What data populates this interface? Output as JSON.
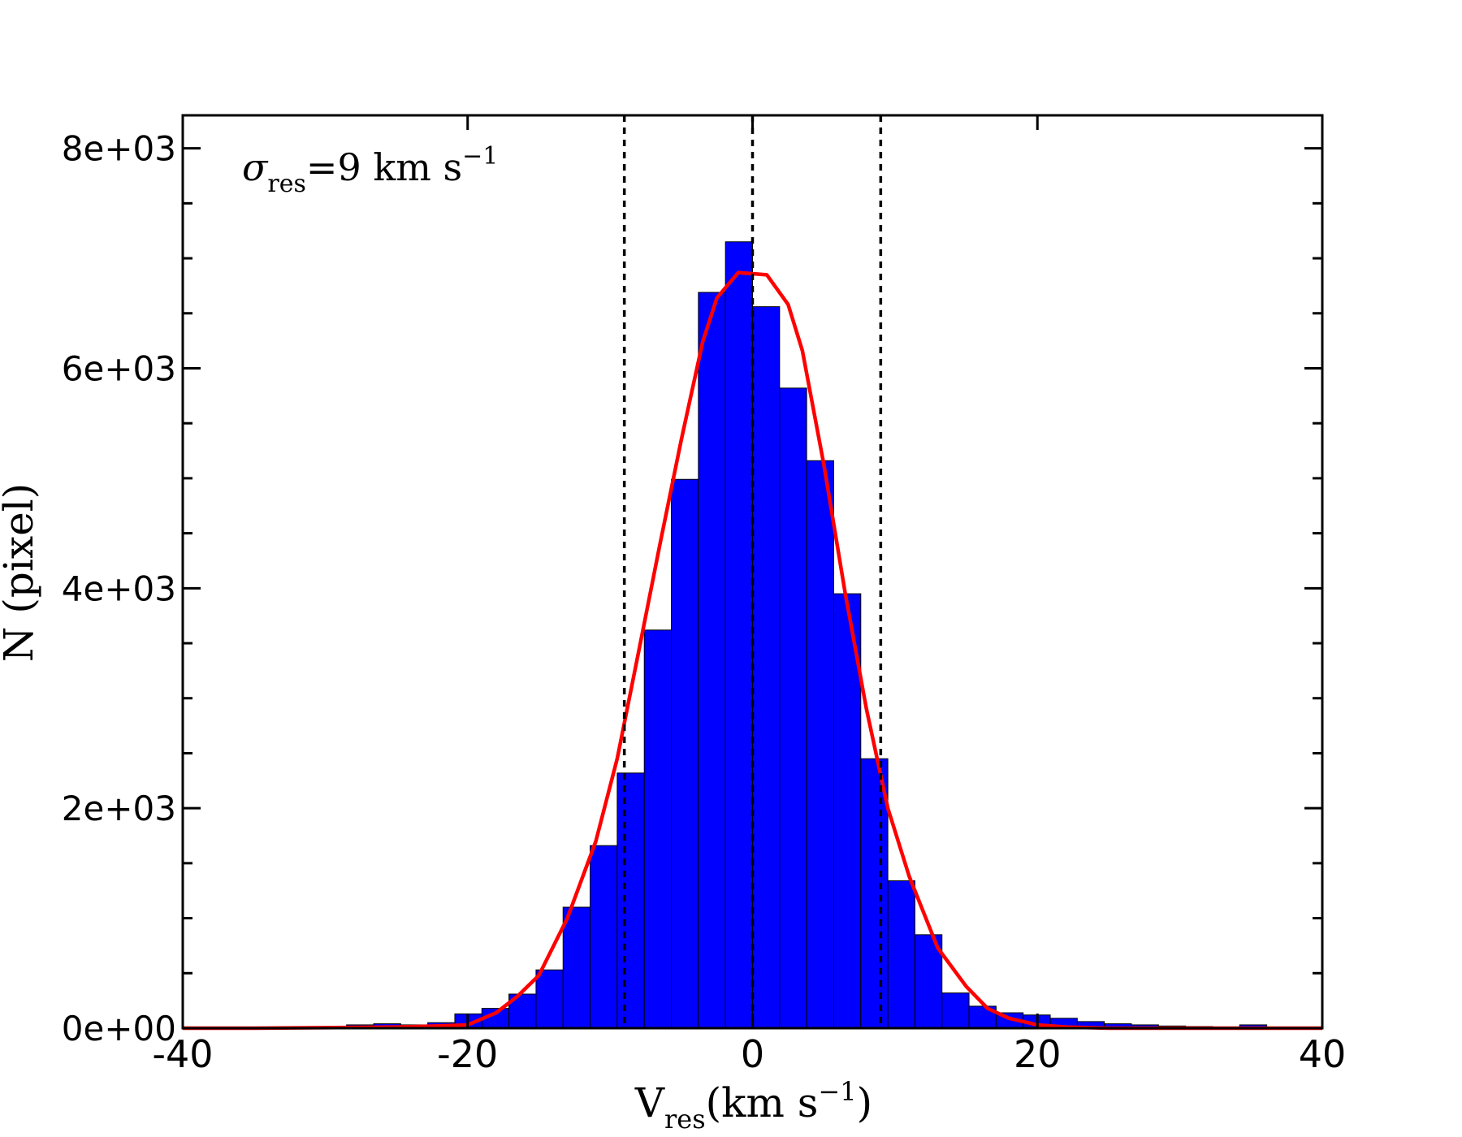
{
  "chart_data": {
    "type": "bar",
    "title": "",
    "annotation": {
      "sigma_symbol": "σ",
      "sigma_subscript": "res",
      "equals": "=9 km s",
      "superscript": "−1"
    },
    "xlabel": {
      "main": "V",
      "subscript": "res",
      "unit": "(km s",
      "superscript": "−1",
      "close": ")"
    },
    "ylabel": "N (pixel)",
    "xlim": [
      -40,
      40
    ],
    "ylim": [
      0,
      8300
    ],
    "x_ticks": [
      -40,
      -20,
      0,
      20,
      40
    ],
    "x_tick_labels": [
      "-40",
      "-20",
      "0",
      "20",
      "40"
    ],
    "y_ticks": [
      0,
      2000,
      4000,
      6000,
      8000
    ],
    "y_tick_labels": [
      "0e+00",
      "2e+03",
      "4e+03",
      "6e+03",
      "8e+03"
    ],
    "y_minor_step": 500,
    "bin_width": 1.9,
    "histogram": {
      "bin_left_edges": [
        -28.5,
        -26.6,
        -24.7,
        -22.8,
        -20.9,
        -19.0,
        -17.1,
        -15.2,
        -13.3,
        -11.4,
        -9.5,
        -7.6,
        -5.7,
        -3.8,
        -1.9,
        0.0,
        1.9,
        3.8,
        5.7,
        7.6,
        9.5,
        11.4,
        13.3,
        15.2,
        17.1,
        19.0,
        20.9,
        22.8,
        24.7,
        26.6,
        28.5,
        30.4,
        32.3,
        34.2,
        36.1
      ],
      "counts": [
        30,
        40,
        30,
        50,
        130,
        180,
        310,
        530,
        1100,
        1660,
        2320,
        3620,
        4990,
        6690,
        7150,
        6560,
        5820,
        5160,
        3950,
        2450,
        1340,
        850,
        320,
        200,
        140,
        120,
        90,
        60,
        40,
        30,
        20,
        15,
        10,
        30,
        10
      ],
      "fill_color": "#0000ff",
      "edge_color": "#000000"
    },
    "fit_curve": {
      "color": "#ff0000",
      "x": [
        -40,
        -35,
        -30,
        -25,
        -22,
        -20,
        -18,
        -16.5,
        -15,
        -13,
        -11,
        -9.5,
        -8,
        -6.5,
        -5,
        -3.5,
        -2.5,
        -1,
        1,
        2.5,
        3.5,
        5,
        6.5,
        8,
        9.5,
        11,
        13,
        15,
        16.5,
        18,
        20,
        22,
        25,
        30,
        35,
        40
      ],
      "y": [
        0,
        0,
        5,
        10,
        20,
        30,
        140,
        290,
        480,
        1000,
        1700,
        2450,
        3420,
        4400,
        5350,
        6240,
        6640,
        6870,
        6850,
        6580,
        6160,
        5130,
        3960,
        2900,
        2000,
        1380,
        730,
        380,
        180,
        90,
        30,
        10,
        0,
        0,
        0,
        0
      ]
    },
    "reference_lines": {
      "color": "#000000",
      "style": "dashed",
      "x": [
        -9,
        0,
        9
      ]
    },
    "grid": false
  }
}
